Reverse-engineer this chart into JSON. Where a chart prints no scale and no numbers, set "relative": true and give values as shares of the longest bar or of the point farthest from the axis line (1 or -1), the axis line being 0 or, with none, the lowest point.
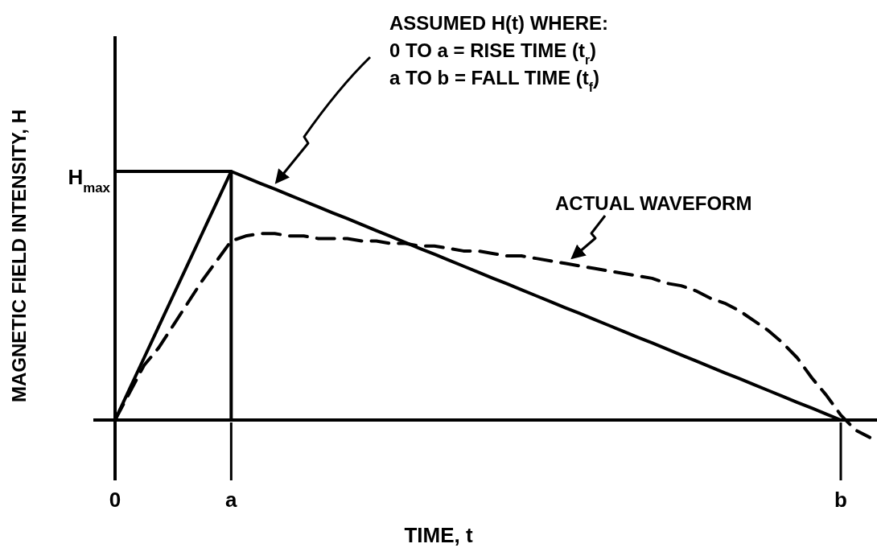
{
  "chart_data": {
    "type": "line",
    "relative": true,
    "xlabel": "TIME, t",
    "ylabel": "MAGNETIC FIELD INTENSITY, H",
    "categories": [
      "0",
      null,
      null,
      null,
      null,
      null,
      null,
      null,
      "a",
      null,
      null,
      null,
      null,
      null,
      null,
      null,
      null,
      null,
      null,
      null,
      null,
      null,
      null,
      null,
      null,
      null,
      null,
      null,
      null,
      null,
      null,
      null,
      null,
      null,
      null,
      null,
      null,
      null,
      null,
      null,
      null,
      null,
      null,
      null,
      null,
      null,
      null,
      null,
      null,
      null,
      "b",
      null,
      null
    ],
    "legend": false,
    "marker": "none",
    "series": [
      {
        "color": "#000000",
        "line_style": "solid",
        "values": [
          0,
          0.125,
          0.25,
          0.375,
          0.5,
          0.625,
          0.75,
          0.875,
          1,
          0.976,
          0.952,
          0.929,
          0.905,
          0.881,
          0.857,
          0.833,
          0.81,
          0.786,
          0.762,
          0.738,
          0.714,
          0.69,
          0.667,
          0.643,
          0.619,
          0.595,
          0.571,
          0.548,
          0.524,
          0.5,
          0.476,
          0.452,
          0.429,
          0.405,
          0.381,
          0.357,
          0.333,
          0.31,
          0.286,
          0.262,
          0.238,
          0.214,
          0.19,
          0.167,
          0.143,
          0.119,
          0.095,
          0.071,
          0.048,
          0.024,
          0,
          null,
          null
        ]
      },
      {
        "color": "#000000",
        "line_style": "solid",
        "values": [
          1,
          1,
          1,
          1,
          1,
          1,
          1,
          1,
          1,
          null,
          null,
          null,
          null,
          null,
          null,
          null,
          null,
          null,
          null,
          null,
          null,
          null,
          null,
          null,
          null,
          null,
          null,
          null,
          null,
          null,
          null,
          null,
          null,
          null,
          null,
          null,
          null,
          null,
          null,
          null,
          null,
          null,
          null,
          null,
          null,
          null,
          null,
          null,
          null,
          null,
          null,
          null,
          null
        ]
      },
      {
        "type": "bar",
        "color": "#000000",
        "values": [
          null,
          null,
          null,
          null,
          null,
          null,
          null,
          null,
          1,
          null,
          null,
          null,
          null,
          null,
          null,
          null,
          null,
          null,
          null,
          null,
          null,
          null,
          null,
          null,
          null,
          null,
          null,
          null,
          null,
          null,
          null,
          null,
          null,
          null,
          null,
          null,
          null,
          null,
          null,
          null,
          null,
          null,
          null,
          null,
          null,
          null,
          null,
          null,
          null,
          null,
          null,
          null,
          null
        ]
      },
      {
        "name": "ACTUAL WAVEFORM",
        "color": "#000000",
        "line_style": "dashed",
        "values": [
          0,
          0.11,
          0.22,
          0.29,
          0.38,
          0.47,
          0.56,
          0.64,
          0.72,
          0.74,
          0.75,
          0.75,
          0.74,
          0.74,
          0.73,
          0.73,
          0.73,
          0.72,
          0.72,
          0.71,
          0.71,
          0.7,
          0.7,
          0.69,
          0.68,
          0.68,
          0.67,
          0.66,
          0.66,
          0.65,
          0.64,
          0.63,
          0.62,
          0.61,
          0.6,
          0.59,
          0.58,
          0.57,
          0.55,
          0.54,
          0.52,
          0.49,
          0.47,
          0.44,
          0.4,
          0.36,
          0.31,
          0.25,
          0.17,
          0.1,
          0.02,
          -0.04,
          -0.07
        ]
      }
    ],
    "annotations": [
      "H$_{max}$",
      "ASSUMED H(t) WHERE:",
      "0 TO a = RISE TIME (t$_{r}$)",
      "a TO b = FALL TIME (t$_{f}$)"
    ]
  }
}
